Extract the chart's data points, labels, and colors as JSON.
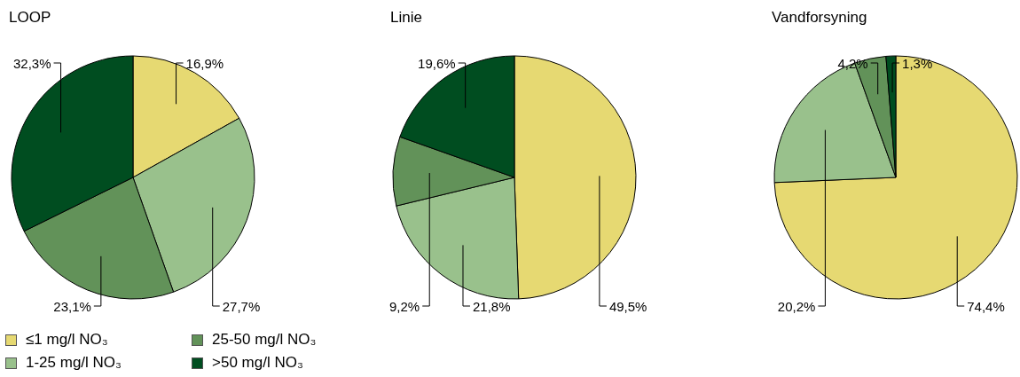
{
  "chart_data": [
    {
      "type": "pie",
      "title": "LOOP",
      "categories": [
        "≤1 mg/l NO₃",
        "1-25 mg/l NO₃",
        "25-50 mg/l NO₃",
        ">50 mg/l NO₃"
      ],
      "values": [
        16.9,
        27.7,
        23.1,
        32.3
      ],
      "value_labels": [
        "16,9%",
        "27,7%",
        "23,1%",
        "32,3%"
      ],
      "colors": [
        "#e6d972",
        "#99c18c",
        "#629259",
        "#004d20"
      ],
      "legend": "bottom"
    },
    {
      "type": "pie",
      "title": "Linie",
      "categories": [
        null,
        null,
        null,
        null
      ],
      "values": [
        49.5,
        21.8,
        9.2,
        19.6
      ],
      "value_labels": [
        "49,5%",
        "21,8%",
        "9,2%",
        "19,6%"
      ],
      "colors": [
        "#e6d972",
        "#99c18c",
        "#629259",
        "#004d20"
      ]
    },
    {
      "type": "pie",
      "title": "Vandforsyning",
      "categories": [
        null,
        null,
        null,
        null
      ],
      "values": [
        74.4,
        20.2,
        4.2,
        1.3
      ],
      "value_labels": [
        "74,4%",
        "20,2%",
        "4,2%",
        "1,3%"
      ],
      "colors": [
        "#e6d972",
        "#99c18c",
        "#629259",
        "#004d20"
      ]
    }
  ]
}
